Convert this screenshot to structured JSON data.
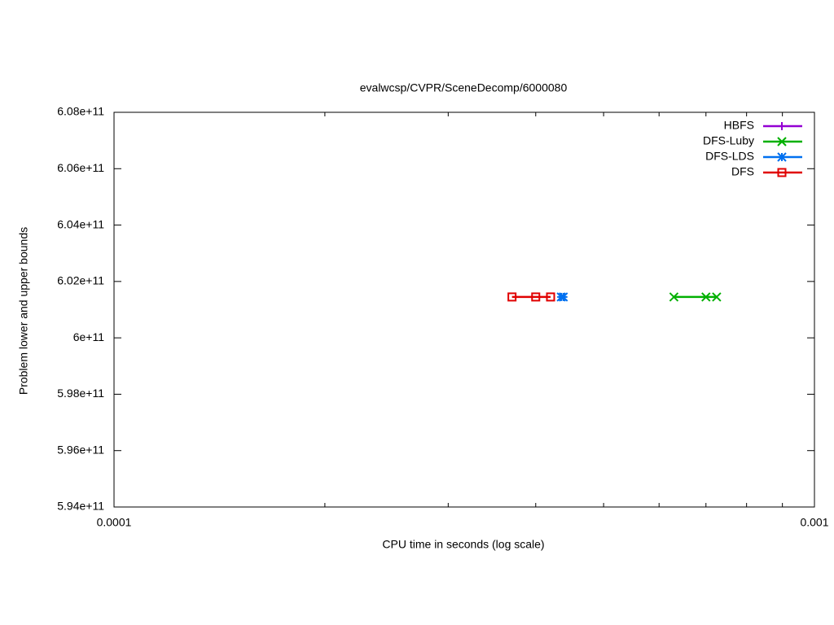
{
  "chart_data": {
    "type": "line",
    "title": "evalwcsp/CVPR/SceneDecomp/6000080",
    "x_label": "CPU time in seconds (log scale)",
    "y_label": "Problem lower and upper bounds",
    "x_log": true,
    "xlim": [
      0.0001,
      0.001
    ],
    "xticks": [
      0.0001,
      0.001
    ],
    "xminorticks": [
      0.0002,
      0.0003,
      0.0004,
      0.0005,
      0.0006,
      0.0007,
      0.0008,
      0.0009
    ],
    "ylim": [
      594000000000,
      608000000000
    ],
    "yticks": [
      {
        "value": 594000000000,
        "label": "5.94e+11"
      },
      {
        "value": 596000000000,
        "label": "5.96e+11"
      },
      {
        "value": 598000000000,
        "label": "5.98e+11"
      },
      {
        "value": 600000000000,
        "label": "6e+11"
      },
      {
        "value": 602000000000,
        "label": "6.02e+11"
      },
      {
        "value": 604000000000,
        "label": "6.04e+11"
      },
      {
        "value": 606000000000,
        "label": "6.06e+11"
      },
      {
        "value": 608000000000,
        "label": "6.08e+11"
      }
    ],
    "legend": "top-right",
    "series": [
      {
        "name": "HBFS",
        "color": "#9400d3",
        "marker": "plus",
        "x": [],
        "values": []
      },
      {
        "name": "DFS-Luby",
        "color": "#00b000",
        "marker": "cross",
        "x": [
          0.00063,
          0.0007,
          0.000725
        ],
        "values": [
          601450000000,
          601450000000,
          601450000000
        ]
      },
      {
        "name": "DFS-LDS",
        "color": "#0070f0",
        "marker": "star",
        "x": [
          0.000435,
          0.000438
        ],
        "values": [
          601450000000,
          601450000000
        ]
      },
      {
        "name": "DFS",
        "color": "#e00000",
        "marker": "square",
        "x": [
          0.00037,
          0.0004,
          0.00042
        ],
        "values": [
          601450000000,
          601450000000,
          601450000000
        ]
      }
    ]
  }
}
